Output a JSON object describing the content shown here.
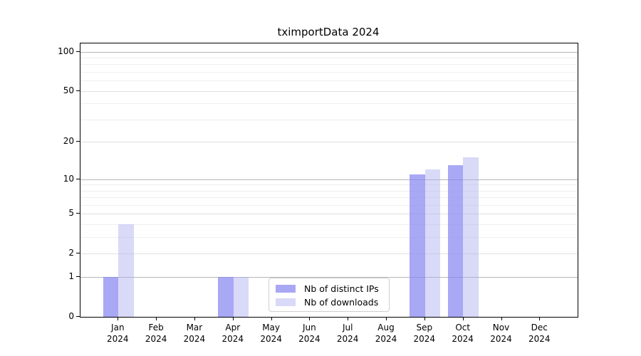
{
  "chart_data": {
    "type": "bar",
    "title": "tximportData 2024",
    "categories": [
      "Jan",
      "Feb",
      "Mar",
      "Apr",
      "May",
      "Jun",
      "Jul",
      "Aug",
      "Sep",
      "Oct",
      "Nov",
      "Dec"
    ],
    "category_year": "2024",
    "series": [
      {
        "name": "Nb of distinct IPs",
        "color": "rgba(134,134,240,0.72)",
        "values": [
          1,
          0,
          0,
          1,
          0,
          0,
          0,
          0,
          11,
          13,
          0,
          0
        ]
      },
      {
        "name": "Nb of downloads",
        "color": "rgba(171,171,240,0.45)",
        "values": [
          4,
          0,
          0,
          1,
          0,
          0,
          0,
          0,
          12,
          15,
          0,
          0
        ]
      }
    ],
    "y_scale": "log10(value+1)",
    "y_ticks": [
      0,
      1,
      2,
      5,
      10,
      20,
      50,
      100
    ],
    "y_gridlines": {
      "major": [
        1,
        10,
        100
      ],
      "labeled": [
        2,
        5,
        20,
        50
      ],
      "minor": [
        3,
        4,
        6,
        7,
        8,
        9,
        30,
        40,
        60,
        70,
        80,
        90
      ]
    },
    "ylim": [
      0,
      115
    ],
    "grid": true,
    "legend_position": "bottom-center"
  }
}
